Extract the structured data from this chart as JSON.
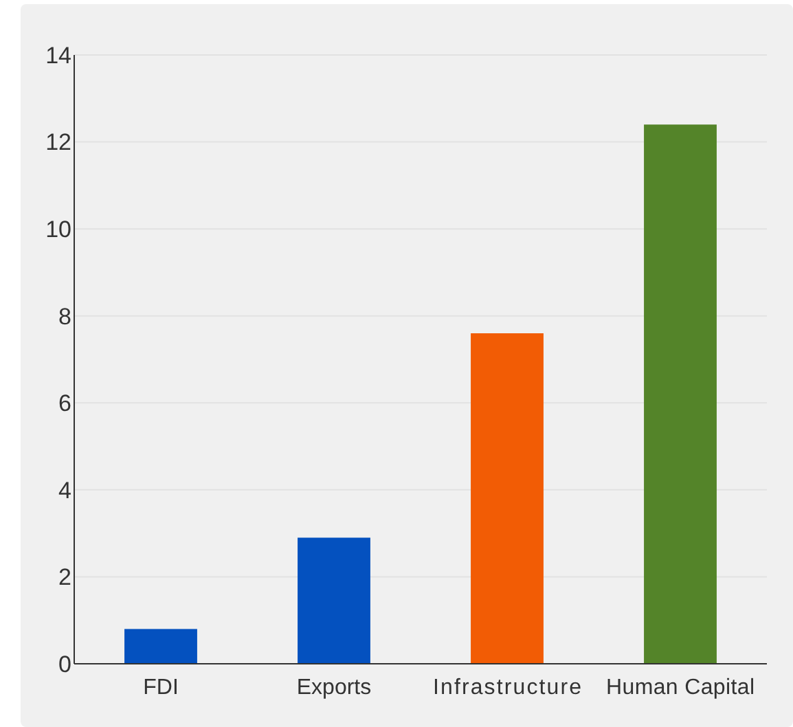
{
  "chart_data": {
    "type": "bar",
    "categories": [
      "FDI",
      "Exports",
      "Infrastructure",
      "Human Capital"
    ],
    "values": [
      0.8,
      2.9,
      7.6,
      12.4
    ],
    "colors": [
      "#0451bf",
      "#0451bf",
      "#f25c05",
      "#548429"
    ],
    "ylim": [
      0,
      14
    ],
    "yticks": [
      0,
      2,
      4,
      6,
      8,
      10,
      12,
      14
    ],
    "grid": "y"
  }
}
